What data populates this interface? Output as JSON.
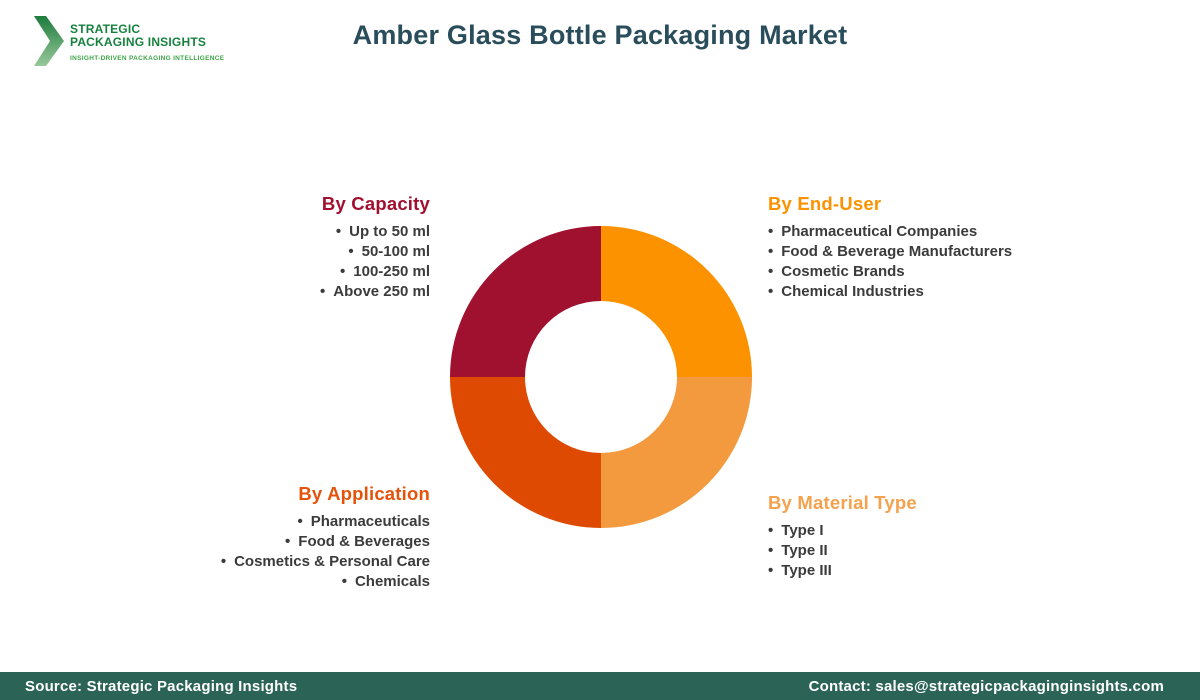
{
  "logo": {
    "line1": "STRATEGIC",
    "line2": "PACKAGING INSIGHTS",
    "tagline": "INSIGHT-DRIVEN PACKAGING INTELLIGENCE",
    "brand_green": "#17813E",
    "tagline_green": "#3FA549"
  },
  "header": {
    "title": "Amber Glass Bottle Packaging Market",
    "title_color": "#2A4D5C"
  },
  "sections": {
    "capacity": {
      "title": "By Capacity",
      "color": "#A0102F",
      "items": [
        "Up to 50 ml",
        "50-100 ml",
        "100-250 ml",
        "Above 250 ml"
      ]
    },
    "end_user": {
      "title": "By End-User",
      "color": "#FC9200",
      "items": [
        "Pharmaceutical Companies",
        "Food & Beverage Manufacturers",
        "Cosmetic Brands",
        "Chemical Industries"
      ]
    },
    "application": {
      "title": "By Application",
      "color": "#E5530B",
      "items": [
        "Pharmaceuticals",
        "Food & Beverages",
        "Cosmetics & Personal Care",
        "Chemicals"
      ]
    },
    "material": {
      "title": "By Material Type",
      "color": "#F5A14D",
      "items": [
        "Type I",
        "Type II",
        "Type III"
      ]
    }
  },
  "chart_data": {
    "type": "pie",
    "subtype": "donut",
    "title": "Market segmentation donut (4 equal quadrants)",
    "start_angle_deg": -90,
    "direction": "clockwise",
    "inner_radius_ratio": 0.5,
    "segments": [
      {
        "label": "By End-User",
        "value": 25,
        "color": "#FC9200"
      },
      {
        "label": "By Material Type",
        "value": 25,
        "color": "#F3993E"
      },
      {
        "label": "By Application",
        "value": 25,
        "color": "#DE4A01"
      },
      {
        "label": "By Capacity",
        "value": 25,
        "color": "#A0102F"
      }
    ]
  },
  "footer": {
    "source": "Source: Strategic Packaging Insights",
    "contact": "Contact: sales@strategicpackaginginsights.com",
    "bg": "#2B6456"
  }
}
